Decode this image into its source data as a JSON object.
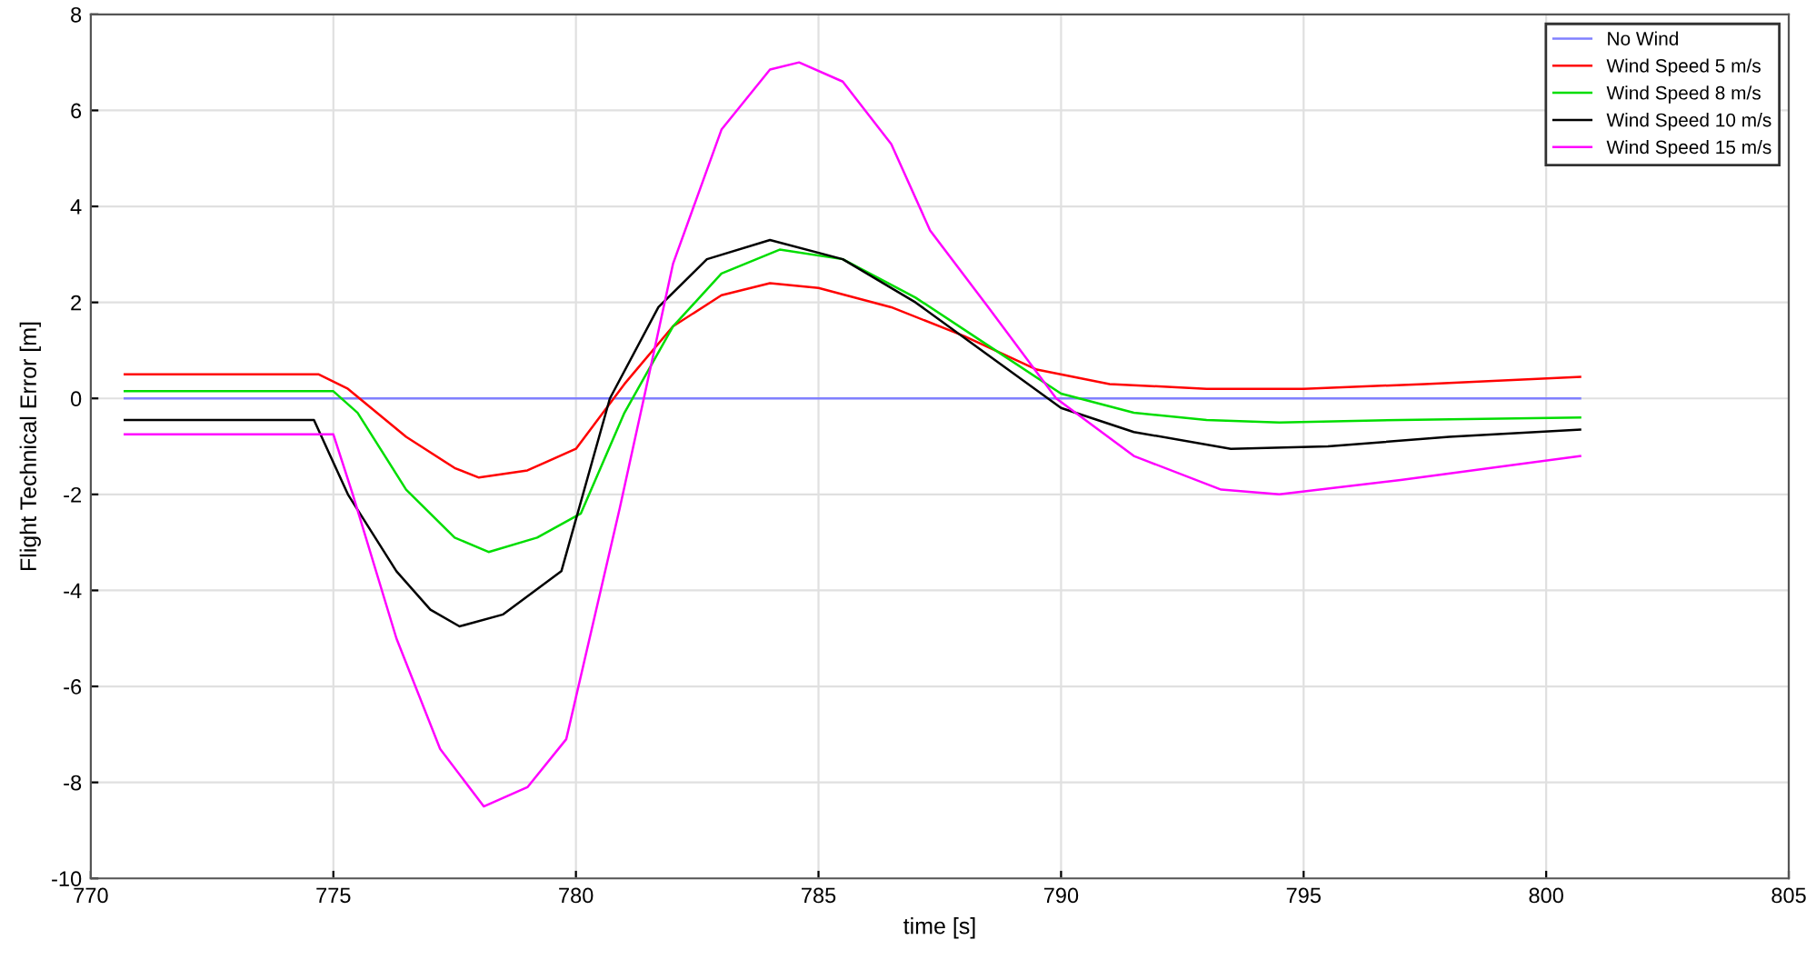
{
  "chart_data": {
    "type": "line",
    "xlabel": "time [s]",
    "ylabel": "Flight Technical Error [m]",
    "xlim": [
      770,
      805
    ],
    "xticks": [
      770,
      775,
      780,
      785,
      790,
      795,
      800,
      805
    ],
    "ylim": [
      -10,
      8
    ],
    "yticks": [
      -10,
      -8,
      -6,
      -4,
      -2,
      0,
      2,
      4,
      6,
      8
    ],
    "grid": true,
    "legend": "top right",
    "series": [
      {
        "name": "No Wind",
        "color": "#8080ff",
        "x": [
          770.7,
          800.7
        ],
        "values": [
          0,
          0
        ]
      },
      {
        "name": "Wind Speed 5 m/s",
        "color": "#ff0000",
        "x": [
          770.7,
          774.7,
          775.3,
          776.5,
          777.5,
          778.0,
          779.0,
          780.0,
          781.0,
          782.0,
          783.0,
          784.0,
          785.0,
          786.5,
          788.0,
          789.5,
          791.0,
          793.0,
          795.0,
          797.5,
          800.7
        ],
        "values": [
          0.5,
          0.5,
          0.2,
          -0.8,
          -1.45,
          -1.65,
          -1.5,
          -1.05,
          0.3,
          1.5,
          2.15,
          2.4,
          2.3,
          1.9,
          1.3,
          0.6,
          0.3,
          0.2,
          0.2,
          0.3,
          0.45
        ]
      },
      {
        "name": "Wind Speed 8 m/s",
        "color": "#00dd00",
        "x": [
          770.7,
          775.0,
          775.5,
          776.5,
          777.5,
          778.2,
          779.2,
          780.1,
          781.0,
          782.0,
          783.0,
          784.2,
          785.5,
          787.0,
          788.5,
          790.0,
          791.5,
          793.0,
          794.5,
          797.0,
          800.7
        ],
        "values": [
          0.15,
          0.15,
          -0.3,
          -1.9,
          -2.9,
          -3.2,
          -2.9,
          -2.4,
          -0.3,
          1.5,
          2.6,
          3.1,
          2.9,
          2.1,
          1.1,
          0.1,
          -0.3,
          -0.45,
          -0.5,
          -0.45,
          -0.4
        ]
      },
      {
        "name": "Wind Speed 10 m/s",
        "color": "#000000",
        "x": [
          770.7,
          774.6,
          775.3,
          776.3,
          777.0,
          777.6,
          778.5,
          779.7,
          780.7,
          781.7,
          782.7,
          784.0,
          785.5,
          787.0,
          788.5,
          790.0,
          791.5,
          793.5,
          795.5,
          798.0,
          800.7
        ],
        "values": [
          -0.45,
          -0.45,
          -2.0,
          -3.6,
          -4.4,
          -4.75,
          -4.5,
          -3.6,
          0.0,
          1.9,
          2.9,
          3.3,
          2.9,
          2.0,
          0.9,
          -0.2,
          -0.7,
          -1.05,
          -1.0,
          -0.8,
          -0.65
        ]
      },
      {
        "name": "Wind Speed 15 m/s",
        "color": "#ff00ff",
        "x": [
          770.7,
          775.0,
          775.4,
          776.3,
          777.2,
          778.1,
          779.0,
          779.8,
          780.9,
          781.4,
          782.0,
          783.0,
          784.0,
          784.6,
          785.5,
          786.5,
          787.3,
          788.5,
          789.9,
          791.5,
          793.3,
          794.5,
          797.0,
          800.7
        ],
        "values": [
          -0.75,
          -0.75,
          -2.0,
          -5.0,
          -7.3,
          -8.5,
          -8.1,
          -7.1,
          -2.3,
          0.0,
          2.8,
          5.6,
          6.85,
          7.0,
          6.6,
          5.3,
          3.5,
          1.9,
          0.0,
          -1.2,
          -1.9,
          -2.0,
          -1.7,
          -1.2
        ]
      }
    ]
  }
}
